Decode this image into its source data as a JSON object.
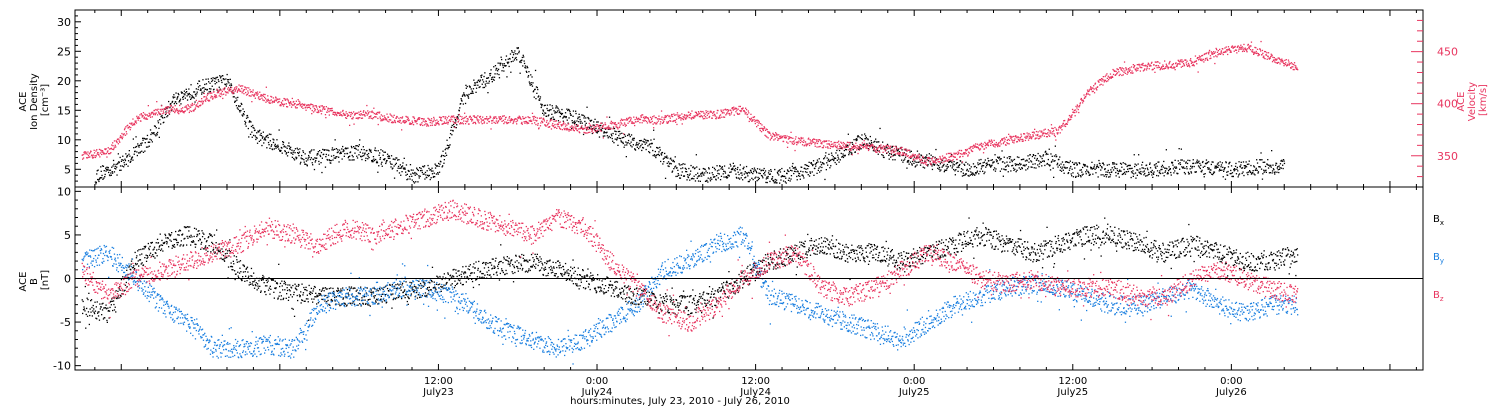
{
  "colors": {
    "black": "#000000",
    "red": "#e8355f",
    "blue": "#1a7fe0"
  },
  "xaxis": {
    "range_hours": [
      -15.5,
      86.5
    ],
    "ticks": [
      {
        "hour": 12,
        "time": "12:00",
        "day": "July23"
      },
      {
        "hour": 24,
        "time": "0:00",
        "day": "July24"
      },
      {
        "hour": 36,
        "time": "12:00",
        "day": "July24"
      },
      {
        "hour": 48,
        "time": "0:00",
        "day": "July25"
      },
      {
        "hour": 60,
        "time": "12:00",
        "day": "July25"
      },
      {
        "hour": 72,
        "time": "0:00",
        "day": "July26"
      }
    ],
    "title": "hours:minutes, July 23, 2010 - July 26, 2010"
  },
  "panel1": {
    "ylabel_left": [
      "ACE",
      "Ion Density",
      "[cm⁻³]"
    ],
    "ylabel_right": [
      "ACE",
      "Velocity",
      "[km/s]"
    ],
    "ylim_left": [
      2,
      32
    ],
    "ylim_right": [
      320,
      490
    ],
    "yticks_left": [
      "5",
      "10",
      "15",
      "20",
      "25",
      "30"
    ],
    "yticks_left_values": [
      5,
      10,
      15,
      20,
      25,
      30
    ],
    "yticks_right": [
      "350",
      "400",
      "450"
    ],
    "yticks_right_values": [
      350,
      400,
      450
    ]
  },
  "panel2": {
    "ylabel": [
      "ACE",
      "B",
      "[nT]"
    ],
    "ylim": [
      -10.5,
      10.5
    ],
    "yticks": [
      "-10",
      "-5",
      "0",
      "5",
      "10"
    ],
    "yticks_values": [
      -10,
      -5,
      0,
      5,
      10
    ],
    "legend": [
      {
        "label": "Bx",
        "main": "B",
        "sub": "x",
        "color": "#000000"
      },
      {
        "label": "By",
        "main": "B",
        "sub": "y",
        "color": "#1a7fe0"
      },
      {
        "label": "Bz",
        "main": "B",
        "sub": "z",
        "color": "#e8355f"
      }
    ]
  },
  "chart_data": [
    {
      "type": "scatter",
      "xlabel": "hours:minutes, July 23, 2010 - July 26, 2010",
      "ylabel": "ACE Ion Density [cm⁻³]",
      "ylabel_right": "ACE Velocity [km/s]",
      "ylim": [
        2,
        32
      ],
      "ylim_right": [
        320,
        490
      ],
      "series": [
        {
          "name": "",
          "axis": "left",
          "color": "#000000",
          "x": [
            -14,
            -12,
            -10,
            -8,
            -6,
            -4,
            -2,
            0,
            2,
            4,
            6,
            8,
            10,
            12,
            14,
            16,
            18,
            20,
            22,
            24,
            26,
            28,
            30,
            32,
            34,
            36,
            38,
            40,
            42,
            44,
            46,
            48,
            50,
            52,
            54,
            56,
            58,
            60,
            62,
            64,
            66,
            68,
            70,
            72,
            74,
            76
          ],
          "y": [
            4,
            6,
            10,
            17,
            19,
            20,
            11,
            9,
            7,
            7.5,
            8,
            7,
            4,
            5,
            18,
            21,
            25,
            15,
            14,
            12,
            10,
            9,
            5,
            4,
            5,
            4,
            4,
            5,
            7,
            10,
            8,
            7,
            6,
            5,
            6,
            6,
            7,
            5,
            5,
            5,
            5,
            5.5,
            5.5,
            5,
            5.5,
            5.5
          ]
        },
        {
          "name": "",
          "axis": "right",
          "color": "#e8355f",
          "x": [
            -15,
            -13,
            -11,
            -9,
            -7,
            -5,
            -3,
            -1,
            1,
            3,
            5,
            7,
            9,
            11,
            13,
            15,
            17,
            19,
            21,
            23,
            25,
            27,
            29,
            31,
            33,
            35,
            37,
            39,
            41,
            43,
            45,
            47,
            49,
            51,
            53,
            55,
            57,
            59,
            61,
            63,
            65,
            67,
            69,
            71,
            73,
            75,
            77
          ],
          "y": [
            350,
            355,
            385,
            395,
            395,
            410,
            415,
            405,
            400,
            395,
            390,
            390,
            385,
            383,
            385,
            385,
            385,
            385,
            380,
            375,
            380,
            385,
            385,
            390,
            390,
            395,
            370,
            365,
            362,
            360,
            358,
            355,
            345,
            350,
            360,
            365,
            370,
            375,
            410,
            430,
            435,
            438,
            440,
            450,
            455,
            445,
            435
          ]
        }
      ]
    },
    {
      "type": "scatter",
      "xlabel": "hours:minutes, July 23, 2010 - July 26, 2010",
      "ylabel": "ACE B [nT]",
      "ylim": [
        -10.5,
        10.5
      ],
      "series": [
        {
          "name": "Bx",
          "color": "#000000",
          "x": [
            -15,
            -13,
            -11,
            -9,
            -7,
            -5,
            -3,
            -1,
            1,
            3,
            5,
            7,
            9,
            11,
            13,
            15,
            17,
            19,
            21,
            23,
            25,
            27,
            29,
            31,
            33,
            35,
            37,
            39,
            41,
            43,
            45,
            47,
            49,
            51,
            53,
            55,
            57,
            59,
            61,
            63,
            65,
            67,
            69,
            71,
            73,
            75,
            77
          ],
          "y": [
            -3,
            -4,
            2,
            4,
            5,
            4,
            1,
            -1,
            -1.5,
            -2,
            -2,
            -2,
            -1.5,
            -1,
            0,
            1,
            1.5,
            2,
            1,
            0,
            -1,
            -2,
            -3,
            -3,
            -2,
            0,
            2,
            3,
            4,
            3,
            3,
            2,
            3,
            4,
            5,
            4,
            3,
            4,
            5,
            5,
            4,
            3,
            4,
            3,
            2,
            2,
            3
          ]
        },
        {
          "name": "By",
          "color": "#1a7fe0",
          "x": [
            -15,
            -13,
            -11,
            -9,
            -7,
            -5,
            -3,
            -1,
            1,
            3,
            5,
            7,
            9,
            11,
            13,
            15,
            17,
            19,
            21,
            23,
            25,
            27,
            29,
            31,
            33,
            35,
            37,
            39,
            41,
            43,
            45,
            47,
            49,
            51,
            53,
            55,
            57,
            59,
            61,
            63,
            65,
            67,
            69,
            71,
            73,
            75,
            77
          ],
          "y": [
            2,
            3,
            0,
            -3,
            -5,
            -8,
            -8,
            -7.5,
            -8,
            -3,
            -2,
            -2,
            -1,
            -1,
            -2,
            -4,
            -6,
            -7,
            -8,
            -7,
            -5,
            -3,
            1,
            2,
            4,
            5,
            -2,
            -3,
            -4,
            -5,
            -6,
            -7,
            -5,
            -3,
            -2,
            -1,
            -0.5,
            -1,
            -2,
            -3,
            -3,
            -2,
            -1,
            -3,
            -4,
            -3,
            -3
          ]
        },
        {
          "name": "Bz",
          "color": "#e8355f",
          "x": [
            -15,
            -13,
            -11,
            -9,
            -7,
            -5,
            -3,
            -1,
            1,
            3,
            5,
            7,
            9,
            11,
            13,
            15,
            17,
            19,
            21,
            23,
            25,
            27,
            29,
            31,
            33,
            35,
            37,
            39,
            41,
            43,
            45,
            47,
            49,
            51,
            53,
            55,
            57,
            59,
            61,
            63,
            65,
            67,
            69,
            71,
            73,
            75,
            77
          ],
          "y": [
            1,
            -2,
            0,
            1,
            2,
            3,
            4,
            6,
            5,
            4,
            6,
            5,
            6,
            7,
            8,
            7,
            6,
            5,
            7,
            6,
            2,
            -1,
            -4,
            -5,
            -3,
            0,
            2,
            3,
            -1,
            -2,
            -1,
            1,
            3,
            2,
            0,
            -0.5,
            0,
            -1,
            -1,
            -1,
            -2,
            -2,
            0,
            1,
            0,
            -1,
            -2
          ]
        }
      ]
    }
  ]
}
